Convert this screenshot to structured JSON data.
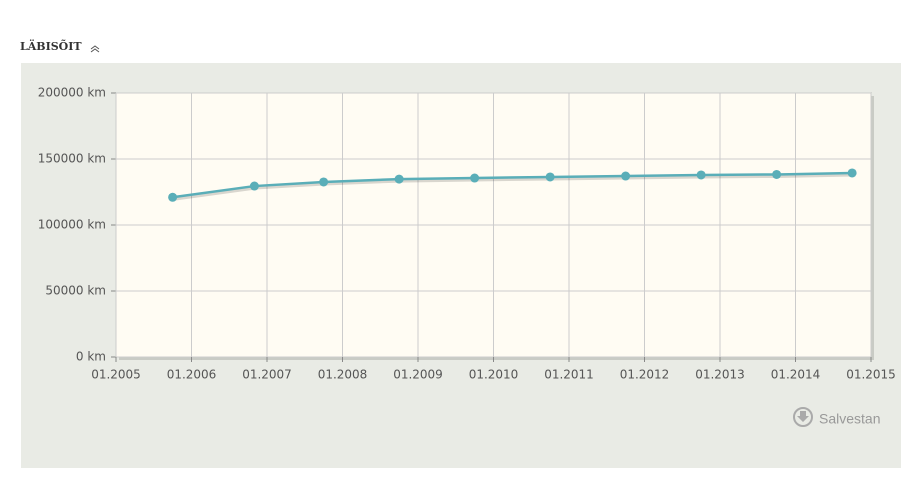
{
  "header": {
    "title": "LÄBISÕIT"
  },
  "chart_data": {
    "type": "line",
    "x": [
      "2005-10",
      "2006-11",
      "2007-10",
      "2008-10",
      "2009-10",
      "2010-10",
      "2011-10",
      "2012-10",
      "2013-10",
      "2014-10"
    ],
    "series": [
      {
        "color": "#5aaeb8",
        "values": [
          121000,
          129500,
          132600,
          134800,
          135600,
          136400,
          137100,
          137900,
          138300,
          139400
        ]
      }
    ],
    "xlim": [
      "2005-01",
      "2015-01"
    ],
    "xticks": [
      {
        "value": "2005-01",
        "label": "01.2005"
      },
      {
        "value": "2006-01",
        "label": "01.2006"
      },
      {
        "value": "2007-01",
        "label": "01.2007"
      },
      {
        "value": "2008-01",
        "label": "01.2008"
      },
      {
        "value": "2009-01",
        "label": "01.2009"
      },
      {
        "value": "2010-01",
        "label": "01.2010"
      },
      {
        "value": "2011-01",
        "label": "01.2011"
      },
      {
        "value": "2012-01",
        "label": "01.2012"
      },
      {
        "value": "2013-01",
        "label": "01.2013"
      },
      {
        "value": "2014-01",
        "label": "01.2014"
      },
      {
        "value": "2015-01",
        "label": "01.2015"
      }
    ],
    "ylim": [
      0,
      200000
    ],
    "yticks": [
      {
        "value": 0,
        "label": "0 km"
      },
      {
        "value": 50000,
        "label": "50000 km"
      },
      {
        "value": 100000,
        "label": "100000 km"
      },
      {
        "value": 150000,
        "label": "150000 km"
      },
      {
        "value": 200000,
        "label": "200000 km"
      }
    ],
    "grid": true
  },
  "button": {
    "label": "Salvestan"
  }
}
